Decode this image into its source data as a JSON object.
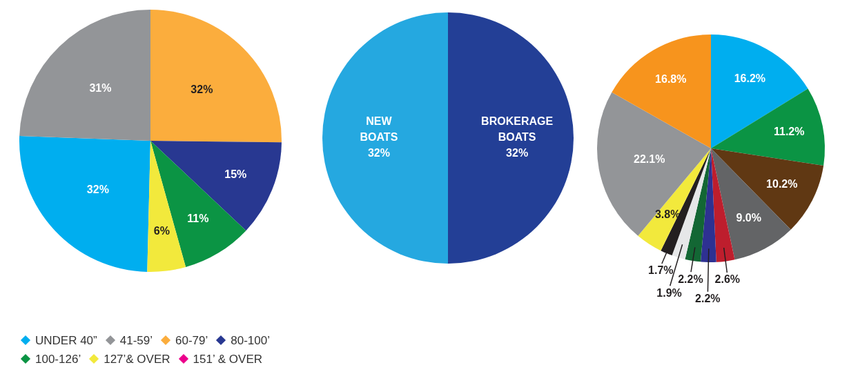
{
  "chart_data": [
    {
      "type": "pie",
      "categories": [
        "UNDER 40”",
        "41-59’",
        "60-79’",
        "80-100’",
        "100-126’",
        "127’& OVER",
        "151’ & OVER"
      ],
      "values": [
        32,
        31,
        32,
        15,
        11,
        6,
        null
      ],
      "colors": [
        "#00aeef",
        "#939598",
        "#fbad3d",
        "#283891",
        "#0b9444",
        "#f2e93c",
        "#ec008c"
      ],
      "value_labels": [
        "32%",
        "31%",
        "32%",
        "15%",
        "11%",
        "6%",
        null
      ],
      "legend": "bottom left"
    },
    {
      "type": "pie",
      "categories": [
        "BROKERAGE BOATS",
        "NEW BOATS"
      ],
      "values": [
        32,
        32
      ],
      "colors": [
        "#233f96",
        "#25a8e0"
      ],
      "value_labels": [
        "32%",
        "32%"
      ]
    },
    {
      "type": "pie",
      "categories": [
        null,
        null,
        null,
        null,
        null,
        null,
        null,
        null,
        null,
        null,
        null,
        null
      ],
      "values": [
        16.2,
        11.2,
        10.2,
        9.0,
        2.6,
        2.2,
        2.2,
        1.9,
        1.7,
        3.8,
        22.1,
        16.8
      ],
      "colors": [
        "#00aeef",
        "#0b9444",
        "#603813",
        "#636466",
        "#be1e2d",
        "#2e3192",
        "#136734",
        "#e6e7e8",
        "#231f20",
        "#f2e93c",
        "#939598",
        "#f7941d"
      ],
      "value_labels": [
        "16.2%",
        "11.2%",
        "10.2%",
        "9.0%",
        "2.6%",
        "2.2%",
        "2.2%",
        "1.9%",
        "1.7%",
        "3.8%",
        "22.1%",
        "16.8%"
      ]
    }
  ]
}
